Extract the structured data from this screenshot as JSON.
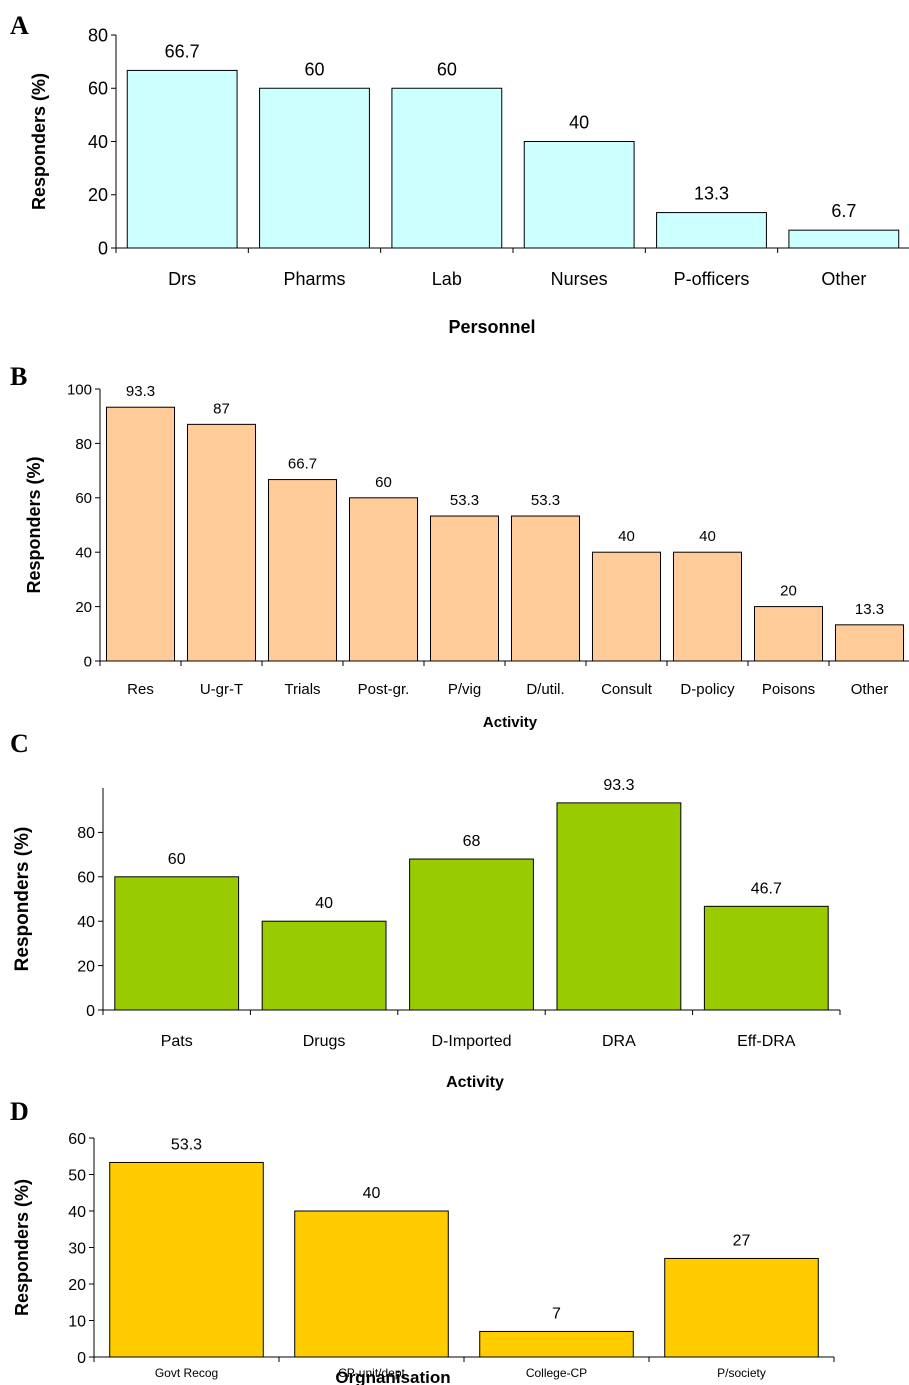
{
  "chart_data": [
    {
      "panel": "A",
      "type": "bar",
      "categories": [
        "Drs",
        "Pharms",
        "Lab",
        "Nurses",
        "P-officers",
        "Other"
      ],
      "values": [
        66.7,
        60,
        60,
        40,
        13.3,
        6.7
      ],
      "data_labels": [
        "66.7",
        "60",
        "60",
        "40",
        "13.3",
        "6.7"
      ],
      "yticks": [
        0,
        20,
        40,
        60,
        80
      ],
      "ylim": [
        0,
        80
      ],
      "xlabel": "Personnel",
      "ylabel": "Responders (%)",
      "bar_color": "#ccffff",
      "grid": false,
      "legend": "none"
    },
    {
      "panel": "B",
      "type": "bar",
      "categories": [
        "Res",
        "U-gr-T",
        "Trials",
        "Post-gr.",
        "P/vig",
        "D/util.",
        "Consult",
        "D-policy",
        "Poisons",
        "Other"
      ],
      "values": [
        93.3,
        87,
        66.7,
        60,
        53.3,
        53.3,
        40,
        40,
        20,
        13.3
      ],
      "data_labels": [
        "93.3",
        "87",
        "66.7",
        "60",
        "53.3",
        "53.3",
        "40",
        "40",
        "20",
        "13.3"
      ],
      "yticks": [
        0,
        20,
        40,
        60,
        80,
        100
      ],
      "ylim": [
        0,
        100
      ],
      "xlabel": "Activity",
      "ylabel": "Responders (%)",
      "bar_color": "#ffcc99",
      "grid": false,
      "legend": "none"
    },
    {
      "panel": "C",
      "type": "bar",
      "categories": [
        "Pats",
        "Drugs",
        "D-Imported",
        "DRA",
        "Eff-DRA"
      ],
      "values": [
        60,
        40,
        68,
        93.3,
        46.7
      ],
      "data_labels": [
        "60",
        "40",
        "68",
        "93.3",
        "46.7"
      ],
      "yticks": [
        0,
        20,
        40,
        60,
        80
      ],
      "ylim": [
        0,
        100
      ],
      "xlabel": "Activity",
      "ylabel": "Responders (%)",
      "bar_color": "#99cc00",
      "grid": false,
      "legend": "none"
    },
    {
      "panel": "D",
      "type": "bar",
      "categories": [
        "Govt Recog",
        "CP-unit/dept",
        "College-CP",
        "P/society"
      ],
      "values": [
        53.3,
        40,
        7,
        27
      ],
      "data_labels": [
        "53.3",
        "40",
        "7",
        "27"
      ],
      "yticks": [
        0,
        10,
        20,
        30,
        40,
        50,
        60
      ],
      "ylim": [
        0,
        60
      ],
      "xlabel": "Orgnanisation",
      "ylabel": "Responders (%)",
      "bar_color": "#ffcc00",
      "grid": false,
      "legend": "none"
    }
  ]
}
